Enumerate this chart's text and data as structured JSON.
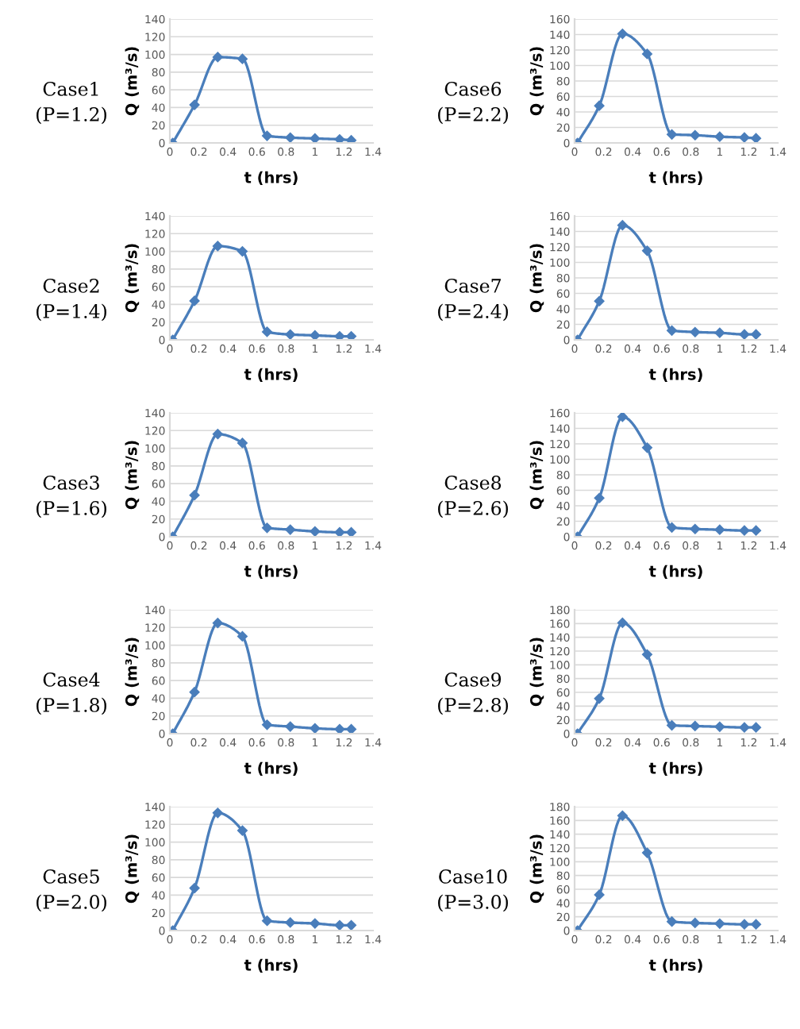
{
  "chart_data": [
    {
      "type": "line",
      "annotations": [
        "Case1",
        "(P=1.2)"
      ],
      "xlabel": "t (hrs)",
      "ylabel": "Q (m³/s)",
      "x": [
        0.02,
        0.17,
        0.33,
        0.5,
        0.67,
        0.83,
        1.0,
        1.17,
        1.25
      ],
      "values": [
        0,
        43,
        97,
        95,
        8,
        6,
        5,
        4,
        3
      ],
      "color": "#4a7ebb",
      "marker": "diamond",
      "xlim": [
        0,
        1.4
      ],
      "xticks": [
        0,
        0.2,
        0.4,
        0.6,
        0.8,
        1,
        1.2,
        1.4
      ],
      "ylim": [
        0,
        140
      ],
      "yticks": [
        0,
        20,
        40,
        60,
        80,
        100,
        120,
        140
      ],
      "grid": "y"
    },
    {
      "type": "line",
      "annotations": [
        "Case6",
        "(P=2.2)"
      ],
      "xlabel": "t (hrs)",
      "ylabel": "Q (m³/s)",
      "x": [
        0.02,
        0.17,
        0.33,
        0.5,
        0.67,
        0.83,
        1.0,
        1.17,
        1.25
      ],
      "values": [
        0,
        48,
        141,
        115,
        11,
        10,
        8,
        7,
        6
      ],
      "color": "#4a7ebb",
      "marker": "diamond",
      "xlim": [
        0,
        1.4
      ],
      "xticks": [
        0,
        0.2,
        0.4,
        0.6,
        0.8,
        1,
        1.2,
        1.4
      ],
      "ylim": [
        0,
        160
      ],
      "yticks": [
        0,
        20,
        40,
        60,
        80,
        100,
        120,
        140,
        160
      ],
      "grid": "y"
    },
    {
      "type": "line",
      "annotations": [
        "Case2",
        "(P=1.4)"
      ],
      "xlabel": "t (hrs)",
      "ylabel": "Q (m³/s)",
      "x": [
        0.02,
        0.17,
        0.33,
        0.5,
        0.67,
        0.83,
        1.0,
        1.17,
        1.25
      ],
      "values": [
        0,
        44,
        106,
        100,
        9,
        6,
        5,
        4,
        4
      ],
      "color": "#4a7ebb",
      "marker": "diamond",
      "xlim": [
        0,
        1.4
      ],
      "xticks": [
        0,
        0.2,
        0.4,
        0.6,
        0.8,
        1,
        1.2,
        1.4
      ],
      "ylim": [
        0,
        140
      ],
      "yticks": [
        0,
        20,
        40,
        60,
        80,
        100,
        120,
        140
      ],
      "grid": "y"
    },
    {
      "type": "line",
      "annotations": [
        "Case7",
        "(P=2.4)"
      ],
      "xlabel": "t (hrs)",
      "ylabel": "Q (m³/s)",
      "x": [
        0.02,
        0.17,
        0.33,
        0.5,
        0.67,
        0.83,
        1.0,
        1.17,
        1.25
      ],
      "values": [
        0,
        50,
        148,
        115,
        12,
        10,
        9,
        7,
        7
      ],
      "color": "#4a7ebb",
      "marker": "diamond",
      "xlim": [
        0,
        1.4
      ],
      "xticks": [
        0,
        0.2,
        0.4,
        0.6,
        0.8,
        1,
        1.2,
        1.4
      ],
      "ylim": [
        0,
        160
      ],
      "yticks": [
        0,
        20,
        40,
        60,
        80,
        100,
        120,
        140,
        160
      ],
      "grid": "y"
    },
    {
      "type": "line",
      "annotations": [
        "Case3",
        "(P=1.6)"
      ],
      "xlabel": "t (hrs)",
      "ylabel": "Q (m³/s)",
      "x": [
        0.02,
        0.17,
        0.33,
        0.5,
        0.67,
        0.83,
        1.0,
        1.17,
        1.25
      ],
      "values": [
        0,
        47,
        116,
        106,
        10,
        8,
        6,
        5,
        5
      ],
      "color": "#4a7ebb",
      "marker": "diamond",
      "xlim": [
        0,
        1.4
      ],
      "xticks": [
        0,
        0.2,
        0.4,
        0.6,
        0.8,
        1,
        1.2,
        1.4
      ],
      "ylim": [
        0,
        140
      ],
      "yticks": [
        0,
        20,
        40,
        60,
        80,
        100,
        120,
        140
      ],
      "grid": "y"
    },
    {
      "type": "line",
      "annotations": [
        "Case8",
        "(P=2.6)"
      ],
      "xlabel": "t (hrs)",
      "ylabel": "Q (m³/s)",
      "x": [
        0.02,
        0.17,
        0.33,
        0.5,
        0.67,
        0.83,
        1.0,
        1.17,
        1.25
      ],
      "values": [
        0,
        50,
        155,
        115,
        12,
        10,
        9,
        8,
        8
      ],
      "color": "#4a7ebb",
      "marker": "diamond",
      "xlim": [
        0,
        1.4
      ],
      "xticks": [
        0,
        0.2,
        0.4,
        0.6,
        0.8,
        1,
        1.2,
        1.4
      ],
      "ylim": [
        0,
        160
      ],
      "yticks": [
        0,
        20,
        40,
        60,
        80,
        100,
        120,
        140,
        160
      ],
      "grid": "y"
    },
    {
      "type": "line",
      "annotations": [
        "Case4",
        "(P=1.8)"
      ],
      "xlabel": "t (hrs)",
      "ylabel": "Q (m³/s)",
      "x": [
        0.02,
        0.17,
        0.33,
        0.5,
        0.67,
        0.83,
        1.0,
        1.17,
        1.25
      ],
      "values": [
        0,
        47,
        125,
        110,
        10,
        8,
        6,
        5,
        5
      ],
      "color": "#4a7ebb",
      "marker": "diamond",
      "xlim": [
        0,
        1.4
      ],
      "xticks": [
        0,
        0.2,
        0.4,
        0.6,
        0.8,
        1,
        1.2,
        1.4
      ],
      "ylim": [
        0,
        140
      ],
      "yticks": [
        0,
        20,
        40,
        60,
        80,
        100,
        120,
        140
      ],
      "grid": "y"
    },
    {
      "type": "line",
      "annotations": [
        "Case9",
        "(P=2.8)"
      ],
      "xlabel": "t (hrs)",
      "ylabel": "Q (m³/s)",
      "x": [
        0.02,
        0.17,
        0.33,
        0.5,
        0.67,
        0.83,
        1.0,
        1.17,
        1.25
      ],
      "values": [
        0,
        51,
        161,
        115,
        12,
        11,
        10,
        9,
        9
      ],
      "color": "#4a7ebb",
      "marker": "diamond",
      "xlim": [
        0,
        1.4
      ],
      "xticks": [
        0,
        0.2,
        0.4,
        0.6,
        0.8,
        1,
        1.2,
        1.4
      ],
      "ylim": [
        0,
        180
      ],
      "yticks": [
        0,
        20,
        40,
        60,
        80,
        100,
        120,
        140,
        160,
        180
      ],
      "grid": "y"
    },
    {
      "type": "line",
      "annotations": [
        "Case5",
        "(P=2.0)"
      ],
      "xlabel": "t (hrs)",
      "ylabel": "Q (m³/s)",
      "x": [
        0.02,
        0.17,
        0.33,
        0.5,
        0.67,
        0.83,
        1.0,
        1.17,
        1.25
      ],
      "values": [
        0,
        48,
        133,
        113,
        11,
        9,
        8,
        6,
        6
      ],
      "color": "#4a7ebb",
      "marker": "diamond",
      "xlim": [
        0,
        1.4
      ],
      "xticks": [
        0,
        0.2,
        0.4,
        0.6,
        0.8,
        1,
        1.2,
        1.4
      ],
      "ylim": [
        0,
        140
      ],
      "yticks": [
        0,
        20,
        40,
        60,
        80,
        100,
        120,
        140
      ],
      "grid": "y"
    },
    {
      "type": "line",
      "annotations": [
        "Case10",
        "(P=3.0)"
      ],
      "xlabel": "t (hrs)",
      "ylabel": "Q (m³/s)",
      "x": [
        0.02,
        0.17,
        0.33,
        0.5,
        0.67,
        0.83,
        1.0,
        1.17,
        1.25
      ],
      "values": [
        0,
        52,
        167,
        113,
        13,
        11,
        10,
        9,
        9
      ],
      "color": "#4a7ebb",
      "marker": "diamond",
      "xlim": [
        0,
        1.4
      ],
      "xticks": [
        0,
        0.2,
        0.4,
        0.6,
        0.8,
        1,
        1.2,
        1.4
      ],
      "ylim": [
        0,
        180
      ],
      "yticks": [
        0,
        20,
        40,
        60,
        80,
        100,
        120,
        140,
        160,
        180
      ],
      "grid": "y"
    }
  ]
}
